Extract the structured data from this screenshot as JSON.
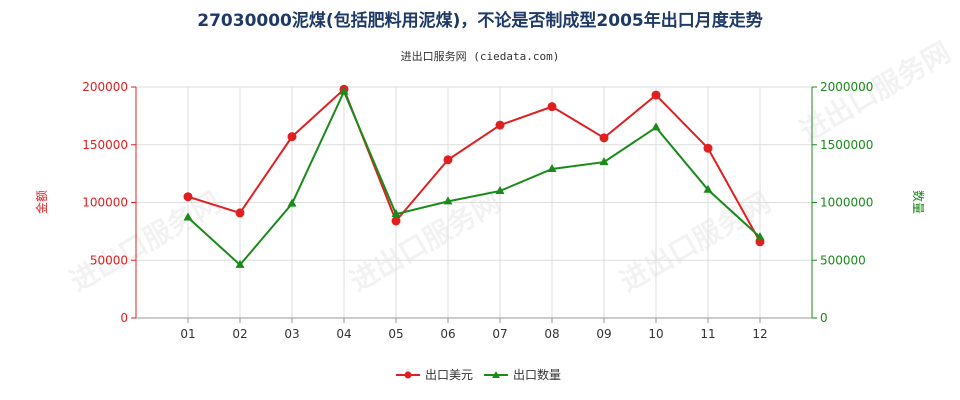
{
  "chart_data": {
    "type": "line",
    "title": "27030000泥煤(包括肥料用泥煤)，不论是否制成型2005年出口月度走势",
    "subtitle": "进出口服务网 (ciedata.com)",
    "categories": [
      "01",
      "02",
      "03",
      "04",
      "05",
      "06",
      "07",
      "08",
      "09",
      "10",
      "11",
      "12"
    ],
    "y_left": {
      "label": "金额",
      "ylim": [
        0,
        200000
      ],
      "ticks": [
        "0",
        "50000",
        "100000",
        "150000",
        "200000"
      ],
      "color": "#e02020"
    },
    "y_right": {
      "label": "数量",
      "ylim": [
        0,
        2000000
      ],
      "ticks": [
        "0",
        "500000",
        "1000000",
        "1500000",
        "2000000"
      ],
      "color": "#1a8a1a"
    },
    "series": [
      {
        "name": "出口美元",
        "axis": "left",
        "color": "#e02020",
        "values": [
          105000,
          91000,
          157000,
          198000,
          84000,
          137000,
          167000,
          183000,
          156000,
          193000,
          147000,
          66000
        ]
      },
      {
        "name": "出口数量",
        "axis": "right",
        "color": "#1a8a1a",
        "values": [
          870000,
          460000,
          990000,
          1960000,
          900000,
          1010000,
          1100000,
          1290000,
          1350000,
          1650000,
          1110000,
          700000
        ]
      }
    ],
    "grid": true,
    "legend": "bottom-center",
    "watermark": "进出口服务网"
  }
}
